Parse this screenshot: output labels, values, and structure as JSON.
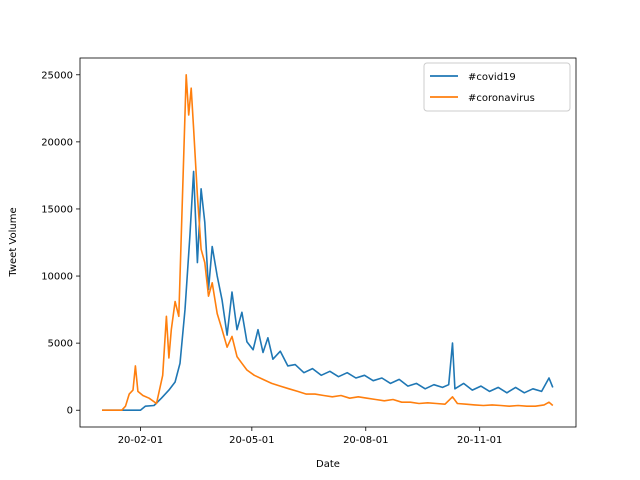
{
  "chart_data": {
    "type": "line",
    "title": "",
    "xlabel": "Date",
    "ylabel": "Tweet Volume",
    "x_range": [
      "2020-01-01",
      "2020-12-31"
    ],
    "ylim": [
      -1250,
      26250
    ],
    "xticks": [
      {
        "date": "2020-02-01",
        "label": "20-02-01"
      },
      {
        "date": "2020-05-01",
        "label": "20-05-01"
      },
      {
        "date": "2020-08-01",
        "label": "20-08-01"
      },
      {
        "date": "2020-11-01",
        "label": "20-11-01"
      }
    ],
    "yticks": [
      0,
      5000,
      10000,
      15000,
      20000,
      25000
    ],
    "grid": false,
    "legend_position": "top-right",
    "series": [
      {
        "name": "#covid19",
        "color": "#1f77b4",
        "points": [
          [
            "2020-01-01",
            0
          ],
          [
            "2020-01-15",
            0
          ],
          [
            "2020-02-01",
            0
          ],
          [
            "2020-02-05",
            300
          ],
          [
            "2020-02-12",
            350
          ],
          [
            "2020-02-18",
            900
          ],
          [
            "2020-02-24",
            1500
          ],
          [
            "2020-02-29",
            2100
          ],
          [
            "2020-03-04",
            3500
          ],
          [
            "2020-03-08",
            7500
          ],
          [
            "2020-03-12",
            13000
          ],
          [
            "2020-03-15",
            17800
          ],
          [
            "2020-03-18",
            11000
          ],
          [
            "2020-03-21",
            16500
          ],
          [
            "2020-03-24",
            14000
          ],
          [
            "2020-03-27",
            9000
          ],
          [
            "2020-03-30",
            12200
          ],
          [
            "2020-04-03",
            10000
          ],
          [
            "2020-04-07",
            8200
          ],
          [
            "2020-04-11",
            5600
          ],
          [
            "2020-04-15",
            8800
          ],
          [
            "2020-04-19",
            6000
          ],
          [
            "2020-04-23",
            7300
          ],
          [
            "2020-04-27",
            5100
          ],
          [
            "2020-05-02",
            4500
          ],
          [
            "2020-05-06",
            6000
          ],
          [
            "2020-05-10",
            4300
          ],
          [
            "2020-05-14",
            5400
          ],
          [
            "2020-05-18",
            3800
          ],
          [
            "2020-05-24",
            4400
          ],
          [
            "2020-05-30",
            3300
          ],
          [
            "2020-06-05",
            3400
          ],
          [
            "2020-06-12",
            2800
          ],
          [
            "2020-06-19",
            3100
          ],
          [
            "2020-06-26",
            2600
          ],
          [
            "2020-07-03",
            2900
          ],
          [
            "2020-07-10",
            2500
          ],
          [
            "2020-07-17",
            2800
          ],
          [
            "2020-07-24",
            2400
          ],
          [
            "2020-07-31",
            2600
          ],
          [
            "2020-08-07",
            2200
          ],
          [
            "2020-08-14",
            2400
          ],
          [
            "2020-08-21",
            2000
          ],
          [
            "2020-08-28",
            2300
          ],
          [
            "2020-09-04",
            1800
          ],
          [
            "2020-09-11",
            2000
          ],
          [
            "2020-09-18",
            1600
          ],
          [
            "2020-09-25",
            1900
          ],
          [
            "2020-10-02",
            1700
          ],
          [
            "2020-10-07",
            1900
          ],
          [
            "2020-10-10",
            5000
          ],
          [
            "2020-10-12",
            1600
          ],
          [
            "2020-10-19",
            2000
          ],
          [
            "2020-10-26",
            1500
          ],
          [
            "2020-11-02",
            1800
          ],
          [
            "2020-11-09",
            1400
          ],
          [
            "2020-11-16",
            1700
          ],
          [
            "2020-11-23",
            1300
          ],
          [
            "2020-11-30",
            1700
          ],
          [
            "2020-12-07",
            1300
          ],
          [
            "2020-12-14",
            1600
          ],
          [
            "2020-12-21",
            1400
          ],
          [
            "2020-12-27",
            2400
          ],
          [
            "2020-12-30",
            1700
          ]
        ]
      },
      {
        "name": "#coronavirus",
        "color": "#ff7f0e",
        "points": [
          [
            "2020-01-01",
            0
          ],
          [
            "2020-01-10",
            0
          ],
          [
            "2020-01-17",
            0
          ],
          [
            "2020-01-20",
            300
          ],
          [
            "2020-01-23",
            1200
          ],
          [
            "2020-01-26",
            1500
          ],
          [
            "2020-01-28",
            3300
          ],
          [
            "2020-01-30",
            1400
          ],
          [
            "2020-02-03",
            1100
          ],
          [
            "2020-02-08",
            900
          ],
          [
            "2020-02-14",
            500
          ],
          [
            "2020-02-19",
            2600
          ],
          [
            "2020-02-22",
            7000
          ],
          [
            "2020-02-24",
            3900
          ],
          [
            "2020-02-26",
            6000
          ],
          [
            "2020-02-29",
            8100
          ],
          [
            "2020-03-03",
            7000
          ],
          [
            "2020-03-06",
            16000
          ],
          [
            "2020-03-09",
            25000
          ],
          [
            "2020-03-11",
            22000
          ],
          [
            "2020-03-13",
            24000
          ],
          [
            "2020-03-15",
            21000
          ],
          [
            "2020-03-18",
            16000
          ],
          [
            "2020-03-21",
            12000
          ],
          [
            "2020-03-24",
            11000
          ],
          [
            "2020-03-27",
            8500
          ],
          [
            "2020-03-30",
            9500
          ],
          [
            "2020-04-03",
            7200
          ],
          [
            "2020-04-07",
            6000
          ],
          [
            "2020-04-11",
            4700
          ],
          [
            "2020-04-15",
            5500
          ],
          [
            "2020-04-19",
            4000
          ],
          [
            "2020-04-23",
            3500
          ],
          [
            "2020-04-27",
            3000
          ],
          [
            "2020-05-03",
            2600
          ],
          [
            "2020-05-10",
            2300
          ],
          [
            "2020-05-17",
            2000
          ],
          [
            "2020-05-24",
            1800
          ],
          [
            "2020-05-31",
            1600
          ],
          [
            "2020-06-07",
            1400
          ],
          [
            "2020-06-14",
            1200
          ],
          [
            "2020-06-21",
            1200
          ],
          [
            "2020-06-28",
            1100
          ],
          [
            "2020-07-05",
            1000
          ],
          [
            "2020-07-12",
            1100
          ],
          [
            "2020-07-19",
            900
          ],
          [
            "2020-07-26",
            1000
          ],
          [
            "2020-08-02",
            900
          ],
          [
            "2020-08-09",
            800
          ],
          [
            "2020-08-16",
            700
          ],
          [
            "2020-08-23",
            800
          ],
          [
            "2020-08-30",
            600
          ],
          [
            "2020-09-06",
            600
          ],
          [
            "2020-09-13",
            500
          ],
          [
            "2020-09-20",
            550
          ],
          [
            "2020-09-27",
            500
          ],
          [
            "2020-10-04",
            450
          ],
          [
            "2020-10-10",
            1000
          ],
          [
            "2020-10-14",
            500
          ],
          [
            "2020-10-21",
            450
          ],
          [
            "2020-10-28",
            400
          ],
          [
            "2020-11-04",
            350
          ],
          [
            "2020-11-11",
            400
          ],
          [
            "2020-11-18",
            350
          ],
          [
            "2020-11-25",
            300
          ],
          [
            "2020-12-02",
            350
          ],
          [
            "2020-12-09",
            300
          ],
          [
            "2020-12-16",
            300
          ],
          [
            "2020-12-23",
            400
          ],
          [
            "2020-12-27",
            600
          ],
          [
            "2020-12-30",
            350
          ]
        ]
      }
    ]
  }
}
